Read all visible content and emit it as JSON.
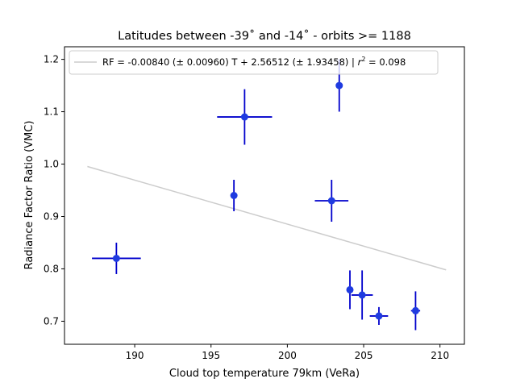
{
  "chart_data": {
    "type": "scatter",
    "title": "Latitudes between -39˚ and -14˚ - orbits >= 1188",
    "xlabel": "Cloud top temperature 79km (VeRa)",
    "ylabel": "Radiance Factor Ratio (VMC)",
    "xlim": [
      185.4,
      211.6
    ],
    "ylim": [
      0.656,
      1.224
    ],
    "xticks": [
      190,
      195,
      200,
      205,
      210
    ],
    "xtick_labels": [
      "190",
      "195",
      "200",
      "205",
      "210"
    ],
    "yticks": [
      0.7,
      0.8,
      0.9,
      1.0,
      1.1,
      1.2
    ],
    "ytick_labels": [
      "0.7",
      "0.8",
      "0.9",
      "1.0",
      "1.1",
      "1.2"
    ],
    "grid": false,
    "legend_position": "top-left",
    "points": [
      {
        "x": 188.8,
        "y": 0.82,
        "xerr": 1.6,
        "yerr": 0.03
      },
      {
        "x": 197.2,
        "y": 1.09,
        "xerr": 1.8,
        "yerr": 0.053
      },
      {
        "x": 196.5,
        "y": 0.94,
        "xerr": 0.2,
        "yerr": 0.03
      },
      {
        "x": 202.9,
        "y": 0.93,
        "xerr": 1.1,
        "yerr": 0.04
      },
      {
        "x": 203.4,
        "y": 1.15,
        "xerr": 0.2,
        "yerr": 0.05
      },
      {
        "x": 204.1,
        "y": 0.76,
        "xerr": 0.2,
        "yerr": 0.037
      },
      {
        "x": 204.9,
        "y": 0.75,
        "xerr": 0.7,
        "yerr": 0.047
      },
      {
        "x": 206.0,
        "y": 0.71,
        "xerr": 0.6,
        "yerr": 0.017
      },
      {
        "x": 208.4,
        "y": 0.72,
        "xerr": 0.3,
        "yerr": 0.037
      }
    ],
    "fit_line": {
      "x": [
        186.9,
        210.4
      ],
      "y": [
        0.9954,
        0.798
      ]
    },
    "legend": {
      "line_label": "RF = -0.00840 (± 0.00960) T + 2.56512 (± 1.93458) | ",
      "r_symbol": "r",
      "r_exponent": "2",
      "r_value": " = 0.098"
    },
    "colors": {
      "points": "#1f3be0",
      "errorbars": "#0000cc",
      "fit_line": "#cccccc",
      "axes": "#000000"
    }
  }
}
